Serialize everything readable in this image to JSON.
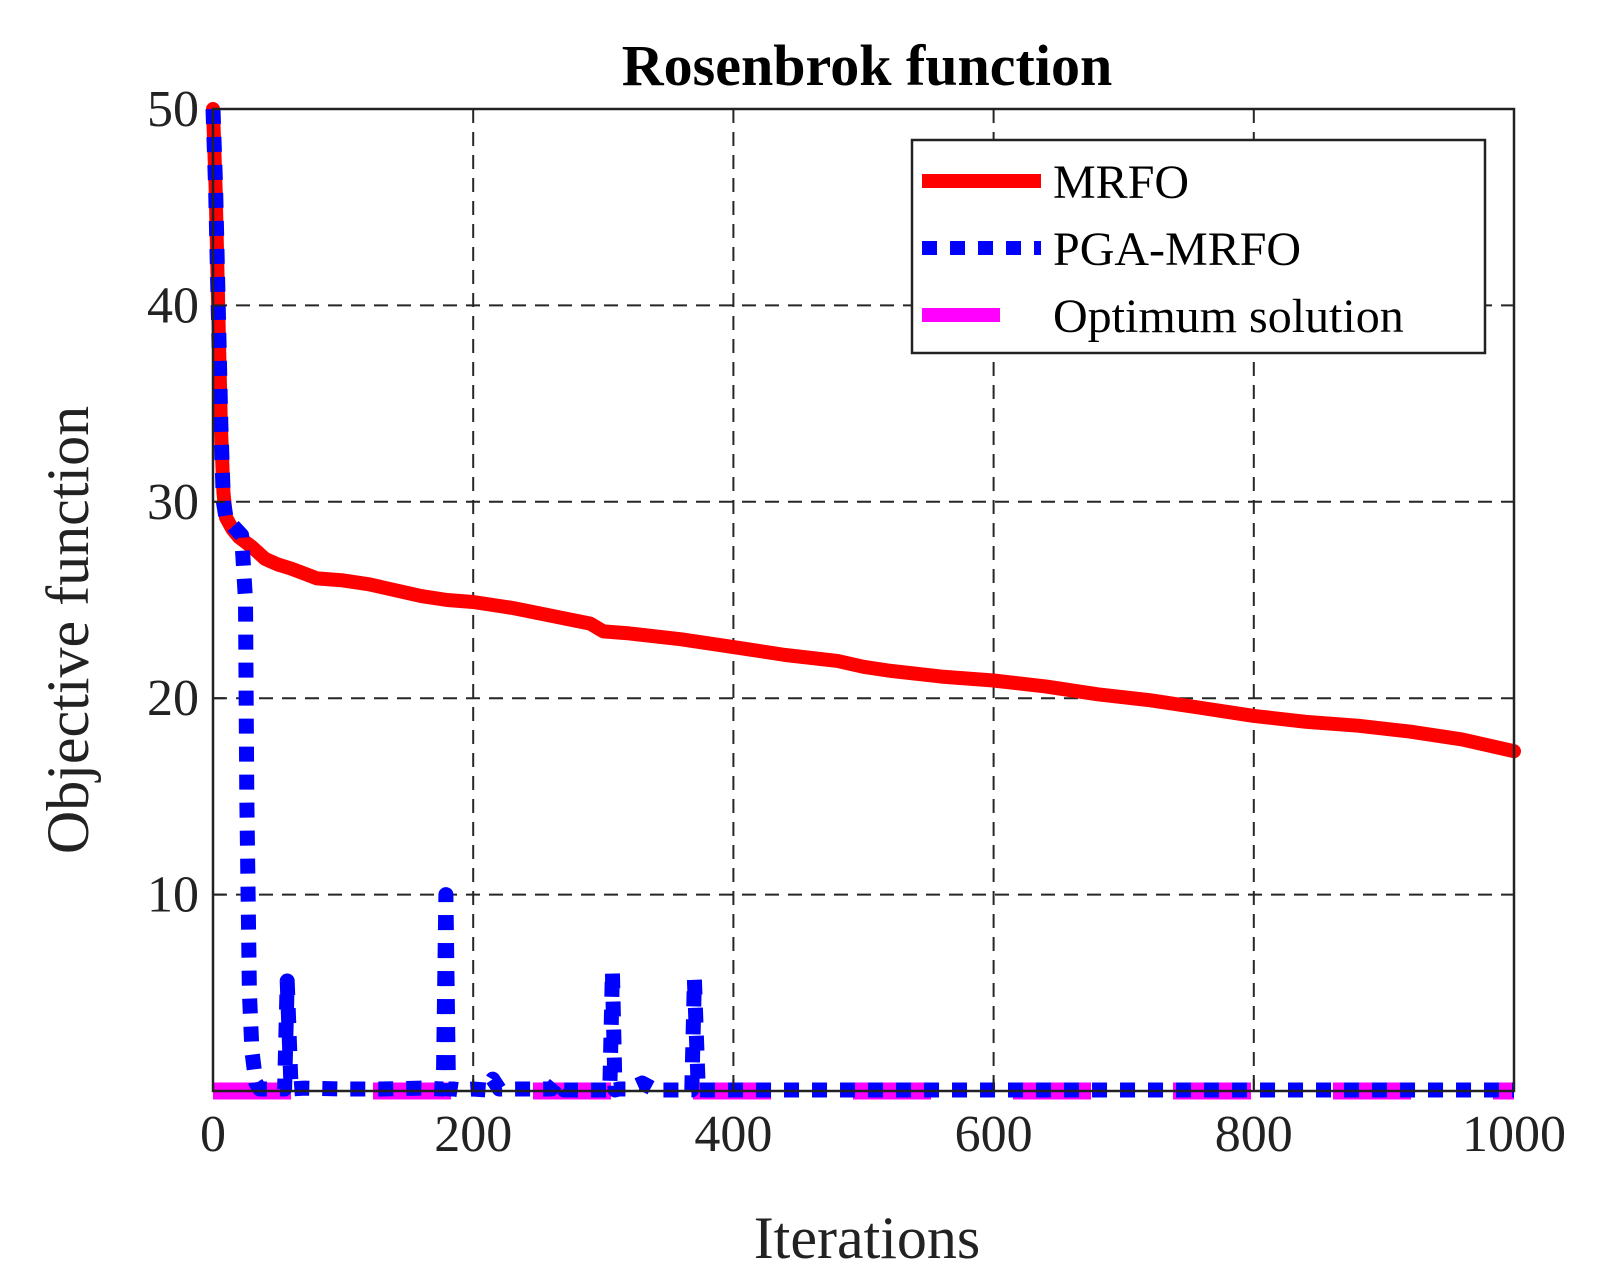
{
  "chart_data": {
    "type": "line",
    "title": "Rosenbrok function",
    "xlabel": "Iterations",
    "ylabel": "Objective function",
    "xlim": [
      0,
      1000
    ],
    "ylim": [
      0,
      50
    ],
    "xticks": [
      0,
      200,
      400,
      600,
      800,
      1000
    ],
    "yticks": [
      10,
      20,
      30,
      40,
      50
    ],
    "grid": true,
    "legend_position": "top-right",
    "series": [
      {
        "name": "MRFO",
        "color": "#ff0000",
        "style": "solid",
        "x": [
          0,
          2,
          4,
          6,
          8,
          10,
          15,
          20,
          30,
          40,
          50,
          60,
          80,
          100,
          120,
          140,
          160,
          180,
          200,
          230,
          260,
          290,
          300,
          320,
          360,
          400,
          440,
          480,
          500,
          520,
          560,
          600,
          640,
          680,
          720,
          760,
          800,
          840,
          880,
          920,
          960,
          1000
        ],
        "y": [
          50,
          46,
          40,
          34,
          30.5,
          29.2,
          28.6,
          28.2,
          27.7,
          27.1,
          26.8,
          26.6,
          26.1,
          26.0,
          25.8,
          25.5,
          25.2,
          25.0,
          24.9,
          24.6,
          24.2,
          23.8,
          23.4,
          23.3,
          23.0,
          22.6,
          22.2,
          21.9,
          21.6,
          21.4,
          21.1,
          20.9,
          20.6,
          20.2,
          19.9,
          19.5,
          19.1,
          18.8,
          18.6,
          18.3,
          17.9,
          17.3
        ]
      },
      {
        "name": "PGA-MRFO",
        "color": "#0000ff",
        "style": "dotted",
        "x": [
          0,
          2,
          4,
          6,
          8,
          10,
          15,
          22,
          25,
          26,
          28,
          30,
          33,
          36,
          45,
          55,
          57,
          60,
          70,
          100,
          130,
          160,
          177,
          179,
          181,
          185,
          190,
          200,
          210,
          215,
          220,
          240,
          260,
          265,
          270,
          290,
          305,
          307,
          309,
          312,
          320,
          330,
          340,
          360,
          368,
          370,
          373,
          380,
          430,
          1000
        ],
        "y": [
          50,
          46,
          40,
          34,
          30,
          29.2,
          28.8,
          28.3,
          25,
          15,
          5,
          2,
          0.4,
          0.1,
          0.1,
          0.1,
          5.6,
          0.1,
          0.15,
          0.1,
          0.1,
          0.15,
          0.1,
          10,
          0.1,
          0.1,
          0.05,
          0.1,
          0.05,
          0.6,
          0.1,
          0.1,
          0.1,
          0.5,
          0.05,
          0.05,
          0.05,
          6.1,
          0.05,
          0.1,
          0.1,
          0.4,
          0.05,
          0.05,
          0.05,
          5.7,
          0.05,
          0.05,
          0.05,
          0.05
        ]
      },
      {
        "name": "Optimum solution",
        "color": "#ff00ff",
        "style": "dashed",
        "x": [
          0,
          1000
        ],
        "y": [
          0,
          0
        ]
      }
    ]
  }
}
